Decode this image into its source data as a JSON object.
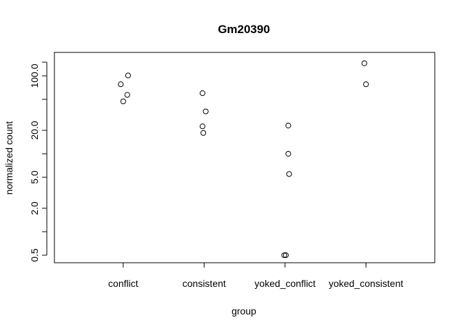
{
  "chart_data": {
    "type": "scatter",
    "title": "Gm20390",
    "xlabel": "group",
    "ylabel": "normalized count",
    "log_y": true,
    "categories": [
      "conflict",
      "consistent",
      "yoked_conflict",
      "yoked_consistent"
    ],
    "yticks": [
      0.5,
      2.0,
      5.0,
      20.0,
      100.0
    ],
    "ytick_labels": [
      "0.5",
      "2.0",
      "5.0",
      "20.0",
      "100.0"
    ],
    "ylim": [
      0.4,
      200
    ],
    "grid": false,
    "points": [
      {
        "group": "conflict",
        "value": 101,
        "jitter": 0.06
      },
      {
        "group": "conflict",
        "value": 78,
        "jitter": -0.03
      },
      {
        "group": "conflict",
        "value": 57,
        "jitter": 0.05
      },
      {
        "group": "conflict",
        "value": 47,
        "jitter": 0.0
      },
      {
        "group": "consistent",
        "value": 60,
        "jitter": -0.02
      },
      {
        "group": "consistent",
        "value": 35,
        "jitter": 0.02
      },
      {
        "group": "consistent",
        "value": 22.5,
        "jitter": -0.02
      },
      {
        "group": "consistent",
        "value": 18.5,
        "jitter": -0.01
      },
      {
        "group": "yoked_conflict",
        "value": 23,
        "jitter": 0.04
      },
      {
        "group": "yoked_conflict",
        "value": 10,
        "jitter": 0.04
      },
      {
        "group": "yoked_conflict",
        "value": 5.5,
        "jitter": 0.05
      },
      {
        "group": "yoked_conflict",
        "value": 0.5,
        "jitter": -0.01
      },
      {
        "group": "yoked_conflict",
        "value": 0.5,
        "jitter": 0.01
      },
      {
        "group": "yoked_consistent",
        "value": 145,
        "jitter": -0.02
      },
      {
        "group": "yoked_consistent",
        "value": 78,
        "jitter": 0.0
      }
    ]
  }
}
